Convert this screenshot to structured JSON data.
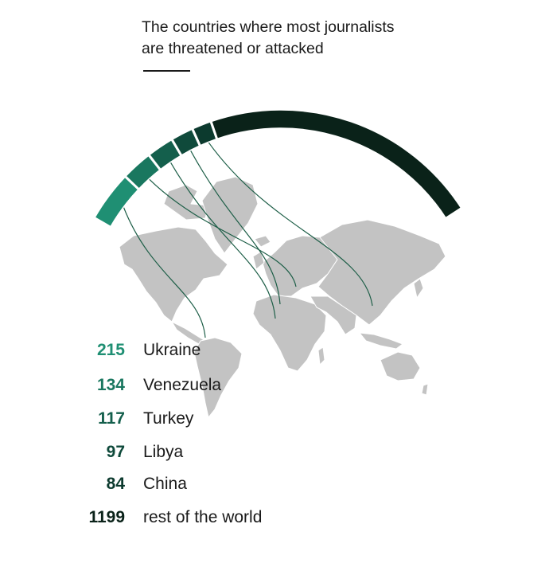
{
  "title_line1": "The countries where most journalists",
  "title_line2": "are threatened or attacked",
  "colors": {
    "segments": [
      "#1f8f73",
      "#19775f",
      "#145f4c",
      "#0f4a3b",
      "#0c3a2e",
      "#0a2219"
    ],
    "map_land": "#c3c3c3",
    "map_border": "#ffffff",
    "link_line": "#1d5e47"
  },
  "chart_data": {
    "type": "bar",
    "title": "The countries where most journalists are threatened or attacked",
    "categories": [
      "Ukraine",
      "Venezuela",
      "Turkey",
      "Libya",
      "China",
      "rest of the world"
    ],
    "values": [
      215,
      134,
      117,
      97,
      84,
      1199
    ],
    "legend": [
      {
        "value": "215",
        "label": "Ukraine"
      },
      {
        "value": "134",
        "label": "Venezuela"
      },
      {
        "value": "117",
        "label": "Turkey"
      },
      {
        "value": "97",
        "label": "Libya"
      },
      {
        "value": "84",
        "label": "China"
      },
      {
        "value": "1199",
        "label": "rest of the world"
      }
    ]
  }
}
